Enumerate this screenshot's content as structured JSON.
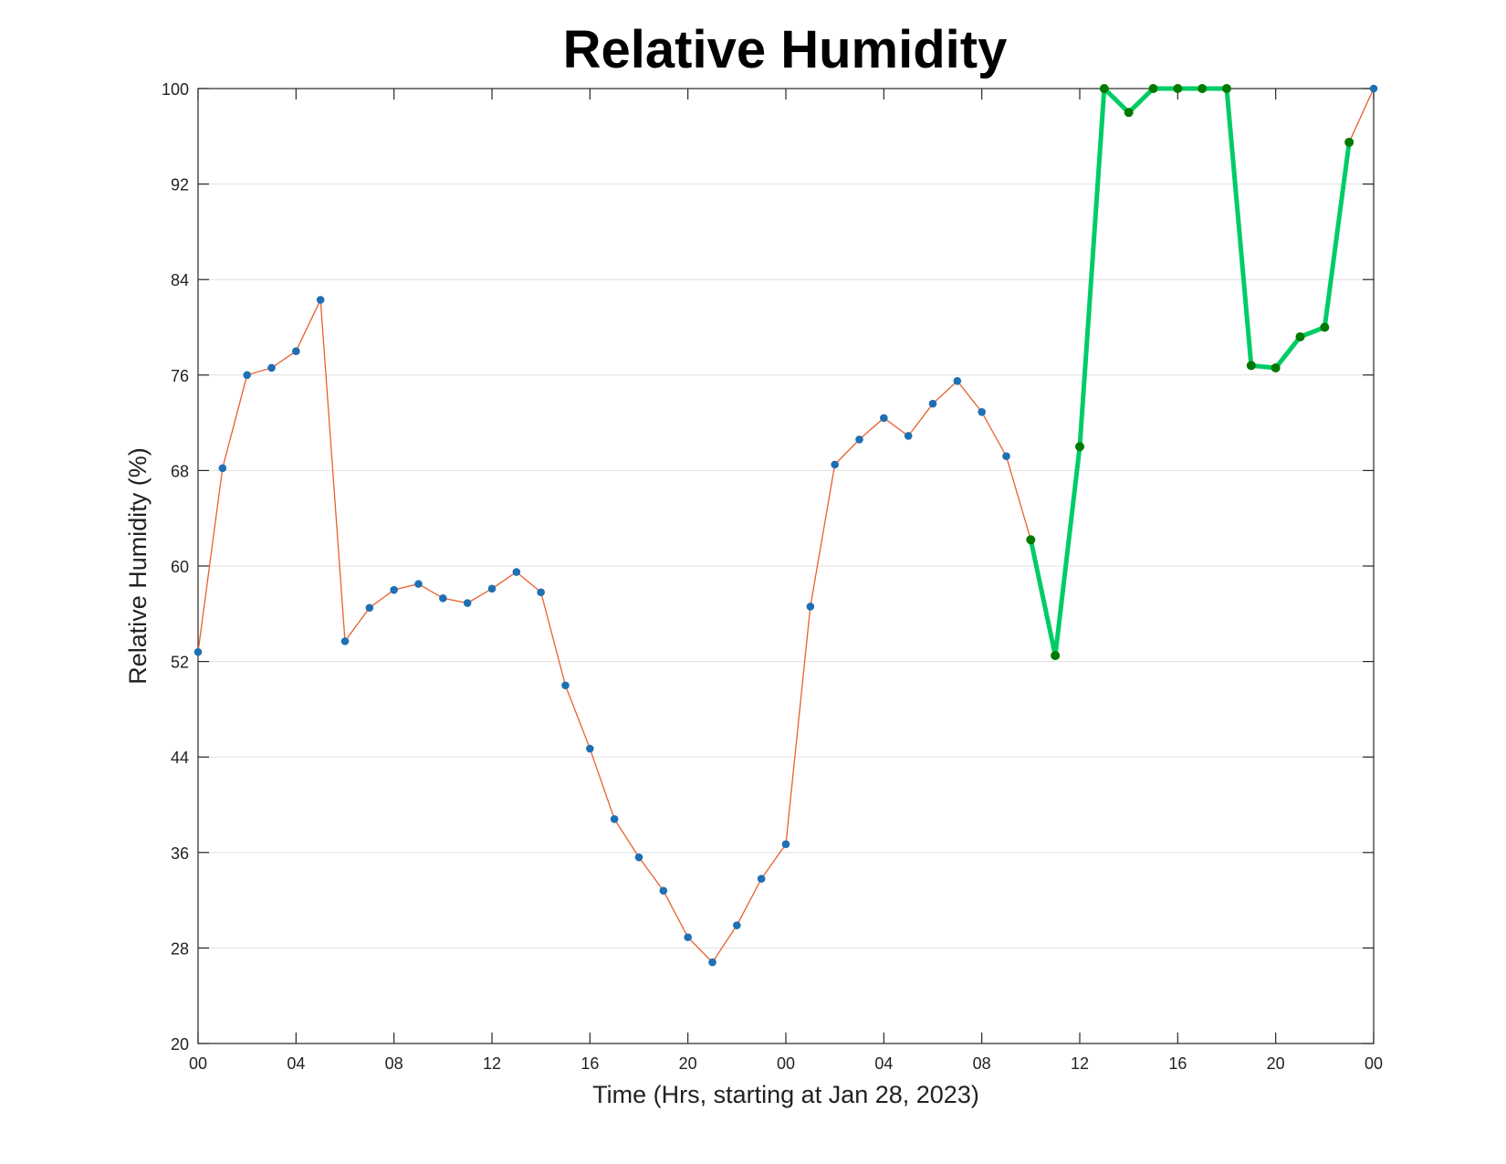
{
  "chart_data": {
    "type": "line",
    "title": "Relative Humidity",
    "xlabel": "Time (Hrs, starting at Jan 28, 2023)",
    "ylabel": "Relative Humidity (%)",
    "ylim": [
      20,
      100
    ],
    "xlim": [
      0,
      48
    ],
    "x_tick_labels": [
      "00",
      "04",
      "08",
      "12",
      "16",
      "20",
      "00",
      "04",
      "08",
      "12",
      "16",
      "20",
      "00"
    ],
    "y_tick_labels": [
      "20",
      "28",
      "36",
      "44",
      "52",
      "60",
      "68",
      "76",
      "84",
      "92",
      "100"
    ],
    "grid": "horizontal",
    "colors": {
      "line_main": "#e8602c",
      "marker_main": "#1f6fb4",
      "line_highlight": "#00cc66",
      "marker_highlight": "#007a00"
    },
    "x": [
      0,
      1,
      2,
      3,
      4,
      5,
      6,
      7,
      8,
      9,
      10,
      11,
      12,
      13,
      14,
      15,
      16,
      17,
      18,
      19,
      20,
      21,
      22,
      23,
      24,
      25,
      26,
      27,
      28,
      29,
      30,
      31,
      32,
      33,
      34,
      35,
      36,
      37,
      38,
      39,
      40,
      41,
      42,
      43,
      44,
      45,
      46,
      47,
      48
    ],
    "series": [
      {
        "values": [
          52.8,
          68.2,
          76.0,
          76.6,
          78.0,
          82.3,
          53.7,
          56.5,
          58.0,
          58.5,
          57.3,
          56.9,
          58.1,
          59.5,
          57.8,
          50.0,
          44.7,
          38.8,
          35.6,
          32.8,
          28.9,
          26.8,
          29.9,
          33.8,
          36.7,
          56.6,
          68.5,
          70.6,
          72.4,
          70.9,
          73.6,
          75.5,
          72.9,
          69.2,
          62.2,
          52.5,
          70.0,
          100.0,
          98.0,
          100.0,
          100.0,
          100.0,
          100.0,
          76.8,
          76.6,
          79.2,
          80.0,
          95.5,
          100.0
        ]
      }
    ],
    "highlight_range": [
      34,
      47
    ]
  }
}
